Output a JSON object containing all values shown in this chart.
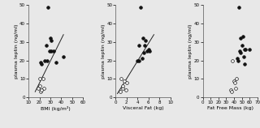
{
  "panel1": {
    "xlabel": "BMI (kg/m²)",
    "ylabel": "plasma leptin (ng/ml)",
    "xlim": [
      10,
      60
    ],
    "ylim": [
      0,
      50
    ],
    "xticks": [
      10,
      20,
      30,
      40,
      50,
      60
    ],
    "yticks": [
      0,
      10,
      20,
      30,
      40,
      50
    ],
    "filled_x": [
      28,
      30,
      31,
      25,
      33,
      42,
      27,
      21,
      22,
      31,
      29,
      35,
      26
    ],
    "filled_y": [
      49,
      32,
      31,
      20,
      25,
      22,
      20,
      19,
      18,
      25,
      25,
      19,
      28
    ],
    "open_x": [
      20,
      23,
      24,
      21,
      19,
      22,
      20
    ],
    "open_y": [
      10,
      10,
      5,
      3,
      5,
      4,
      6
    ],
    "line_x": [
      16,
      42
    ],
    "line_y": [
      3,
      34
    ]
  },
  "panel2": {
    "xlabel": "Visceral Fat (kg)",
    "ylabel": "plasma leptin (ng/ml)",
    "xlim": [
      0,
      10
    ],
    "ylim": [
      0,
      50
    ],
    "xticks": [
      0,
      2,
      4,
      6,
      8,
      10
    ],
    "yticks": [
      0,
      10,
      20,
      30,
      40,
      50
    ],
    "filled_x": [
      4.5,
      5.0,
      5.5,
      4.2,
      5.8,
      6.2,
      4.0,
      4.8,
      5.2,
      6.0,
      4.3,
      5.3
    ],
    "filled_y": [
      49,
      32,
      31,
      28,
      25,
      25,
      20,
      21,
      24,
      26,
      20,
      28
    ],
    "open_x": [
      1.0,
      1.5,
      2.0,
      1.2,
      0.8,
      1.8,
      1.3
    ],
    "open_y": [
      10,
      9,
      8,
      5,
      3,
      4,
      6
    ],
    "line_x": [
      0.3,
      7.0
    ],
    "line_y": [
      2,
      34
    ]
  },
  "panel3": {
    "xlabel": "Fat Free Mass (kg)",
    "ylabel": "plasma leptin (ng/ml)",
    "xlim": [
      0,
      70
    ],
    "ylim": [
      0,
      50
    ],
    "xticks": [
      0,
      10,
      20,
      30,
      40,
      50,
      60,
      70
    ],
    "yticks": [
      0,
      10,
      20,
      30,
      40,
      50
    ],
    "filled_x": [
      46,
      48,
      50,
      47,
      52,
      54,
      44,
      48,
      51,
      55,
      45,
      53,
      60
    ],
    "filled_y": [
      49,
      32,
      28,
      25,
      22,
      26,
      21,
      24,
      33,
      26,
      20,
      18,
      26
    ],
    "open_x": [
      38,
      40,
      42,
      36,
      37,
      41,
      43
    ],
    "open_y": [
      20,
      9,
      5,
      4,
      3,
      8,
      10
    ]
  },
  "dot_size": 7,
  "dot_linewidth": 0.5,
  "line_color": "#222222",
  "filled_color": "#111111",
  "open_color": "#ffffff",
  "edge_color": "#111111",
  "bg_color": "#e8e8e8"
}
